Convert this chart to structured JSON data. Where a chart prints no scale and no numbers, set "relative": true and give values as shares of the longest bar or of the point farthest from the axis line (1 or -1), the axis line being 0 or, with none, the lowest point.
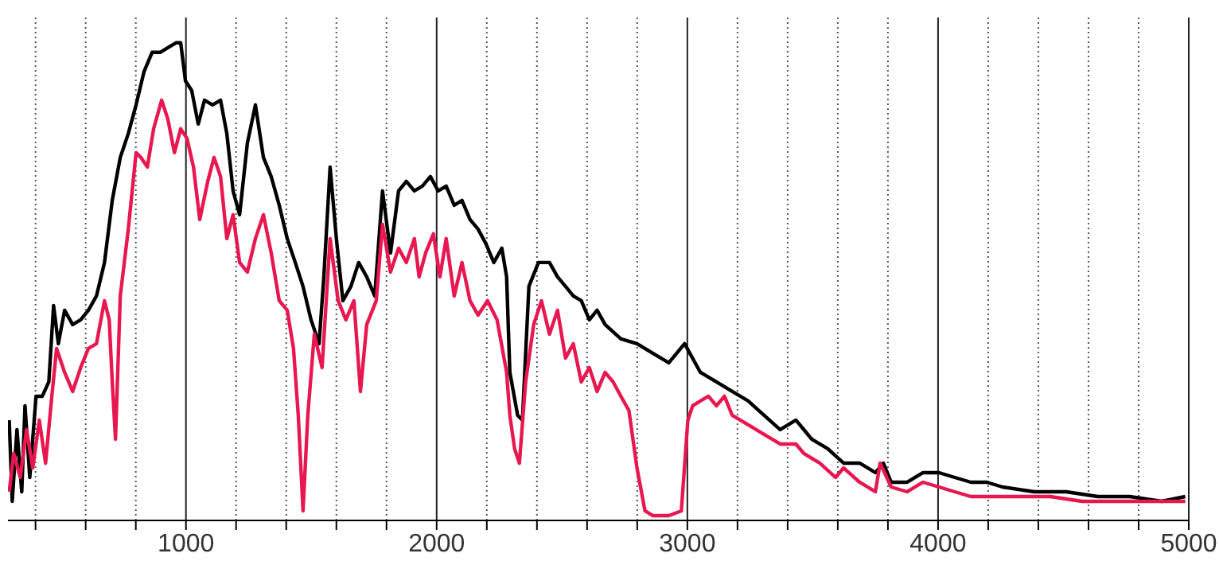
{
  "chart_data": {
    "type": "line",
    "relative": true,
    "grid": "x",
    "marker": "none",
    "line_style": "solid",
    "xlim": [
      290,
      5000
    ],
    "xticks": [
      {
        "value": 400,
        "label": null
      },
      {
        "value": 600,
        "label": null
      },
      {
        "value": 800,
        "label": null
      },
      1000,
      {
        "value": 1200,
        "label": null
      },
      {
        "value": 1400,
        "label": null
      },
      {
        "value": 1600,
        "label": null
      },
      {
        "value": 1800,
        "label": null
      },
      2000,
      {
        "value": 2200,
        "label": null
      },
      {
        "value": 2400,
        "label": null
      },
      {
        "value": 2600,
        "label": null
      },
      {
        "value": 2800,
        "label": null
      },
      3000,
      {
        "value": 3200,
        "label": null
      },
      {
        "value": 3400,
        "label": null
      },
      {
        "value": 3600,
        "label": null
      },
      {
        "value": 3800,
        "label": null
      },
      4000,
      {
        "value": 4200,
        "label": null
      },
      {
        "value": 4400,
        "label": null
      },
      {
        "value": 4600,
        "label": null
      },
      {
        "value": 4800,
        "label": null
      },
      5000
    ],
    "series": [
      {
        "color": "#000000",
        "x": [
          295,
          307,
          326,
          345,
          358,
          377,
          402,
          427,
          453,
          472,
          491,
          516,
          548,
          580,
          611,
          643,
          675,
          706,
          738,
          770,
          801,
          833,
          865,
          897,
          928,
          960,
          979,
          998,
          1023,
          1049,
          1074,
          1106,
          1138,
          1163,
          1188,
          1214,
          1245,
          1277,
          1309,
          1340,
          1372,
          1404,
          1436,
          1467,
          1499,
          1531,
          1550,
          1575,
          1600,
          1626,
          1658,
          1689,
          1721,
          1753,
          1784,
          1816,
          1848,
          1879,
          1911,
          1943,
          1975,
          2006,
          2038,
          2070,
          2101,
          2133,
          2165,
          2196,
          2228,
          2260,
          2279,
          2292,
          2323,
          2342,
          2368,
          2406,
          2450,
          2482,
          2514,
          2545,
          2577,
          2609,
          2640,
          2672,
          2735,
          2799,
          2862,
          2926,
          2989,
          3052,
          3116,
          3179,
          3243,
          3306,
          3370,
          3433,
          3465,
          3496,
          3560,
          3623,
          3687,
          3750,
          3782,
          3813,
          3877,
          3940,
          4004,
          4067,
          4131,
          4194,
          4257,
          4384,
          4511,
          4638,
          4765,
          4892,
          4986
        ],
        "values": [
          0.21,
          0.04,
          0.19,
          0.06,
          0.24,
          0.09,
          0.26,
          0.26,
          0.29,
          0.45,
          0.37,
          0.44,
          0.41,
          0.42,
          0.44,
          0.47,
          0.54,
          0.67,
          0.76,
          0.81,
          0.87,
          0.94,
          0.98,
          0.98,
          0.99,
          1.0,
          1.0,
          0.92,
          0.9,
          0.83,
          0.88,
          0.87,
          0.88,
          0.81,
          0.69,
          0.64,
          0.79,
          0.87,
          0.76,
          0.72,
          0.66,
          0.59,
          0.54,
          0.49,
          0.42,
          0.37,
          0.51,
          0.74,
          0.59,
          0.46,
          0.49,
          0.54,
          0.51,
          0.47,
          0.69,
          0.56,
          0.69,
          0.71,
          0.69,
          0.7,
          0.72,
          0.69,
          0.7,
          0.66,
          0.67,
          0.63,
          0.61,
          0.58,
          0.54,
          0.57,
          0.51,
          0.31,
          0.22,
          0.21,
          0.49,
          0.54,
          0.54,
          0.51,
          0.49,
          0.47,
          0.46,
          0.42,
          0.44,
          0.41,
          0.38,
          0.37,
          0.35,
          0.33,
          0.37,
          0.31,
          0.29,
          0.27,
          0.25,
          0.22,
          0.19,
          0.21,
          0.19,
          0.17,
          0.15,
          0.12,
          0.12,
          0.1,
          0.12,
          0.08,
          0.08,
          0.1,
          0.1,
          0.09,
          0.08,
          0.08,
          0.07,
          0.06,
          0.06,
          0.05,
          0.05,
          0.04,
          0.05
        ]
      },
      {
        "color": "#e8174f",
        "x": [
          295,
          313,
          339,
          364,
          389,
          415,
          440,
          465,
          484,
          516,
          548,
          580,
          611,
          643,
          675,
          694,
          706,
          719,
          738,
          770,
          801,
          820,
          846,
          871,
          903,
          928,
          954,
          979,
          1004,
          1030,
          1055,
          1087,
          1112,
          1138,
          1163,
          1188,
          1214,
          1245,
          1277,
          1309,
          1340,
          1372,
          1404,
          1429,
          1448,
          1467,
          1486,
          1512,
          1543,
          1575,
          1607,
          1638,
          1670,
          1696,
          1721,
          1759,
          1784,
          1816,
          1848,
          1879,
          1911,
          1930,
          1956,
          1987,
          2013,
          2038,
          2070,
          2101,
          2133,
          2165,
          2203,
          2241,
          2279,
          2292,
          2311,
          2330,
          2355,
          2387,
          2418,
          2450,
          2482,
          2514,
          2545,
          2577,
          2609,
          2640,
          2672,
          2704,
          2735,
          2767,
          2799,
          2831,
          2862,
          2926,
          2976,
          3002,
          3021,
          3052,
          3084,
          3116,
          3148,
          3179,
          3211,
          3243,
          3306,
          3370,
          3433,
          3465,
          3528,
          3591,
          3623,
          3687,
          3750,
          3769,
          3813,
          3877,
          3940,
          4004,
          4067,
          4131,
          4194,
          4321,
          4448,
          4574,
          4701,
          4828,
          4986
        ],
        "values": [
          0.06,
          0.14,
          0.09,
          0.19,
          0.11,
          0.21,
          0.12,
          0.26,
          0.36,
          0.31,
          0.27,
          0.32,
          0.36,
          0.37,
          0.46,
          0.42,
          0.29,
          0.17,
          0.47,
          0.61,
          0.77,
          0.76,
          0.74,
          0.82,
          0.88,
          0.84,
          0.77,
          0.82,
          0.8,
          0.74,
          0.63,
          0.71,
          0.76,
          0.72,
          0.59,
          0.64,
          0.54,
          0.52,
          0.59,
          0.64,
          0.56,
          0.46,
          0.44,
          0.36,
          0.22,
          0.02,
          0.22,
          0.39,
          0.32,
          0.59,
          0.46,
          0.42,
          0.46,
          0.27,
          0.41,
          0.46,
          0.62,
          0.52,
          0.57,
          0.54,
          0.59,
          0.51,
          0.56,
          0.6,
          0.51,
          0.59,
          0.47,
          0.54,
          0.46,
          0.43,
          0.46,
          0.42,
          0.31,
          0.22,
          0.15,
          0.12,
          0.29,
          0.41,
          0.46,
          0.39,
          0.44,
          0.34,
          0.37,
          0.29,
          0.32,
          0.27,
          0.31,
          0.29,
          0.26,
          0.23,
          0.11,
          0.02,
          0.01,
          0.01,
          0.02,
          0.21,
          0.24,
          0.25,
          0.26,
          0.24,
          0.26,
          0.22,
          0.21,
          0.2,
          0.18,
          0.16,
          0.16,
          0.14,
          0.12,
          0.09,
          0.11,
          0.08,
          0.06,
          0.12,
          0.07,
          0.06,
          0.08,
          0.07,
          0.06,
          0.05,
          0.05,
          0.05,
          0.05,
          0.04,
          0.04,
          0.04,
          0.04
        ]
      }
    ]
  }
}
